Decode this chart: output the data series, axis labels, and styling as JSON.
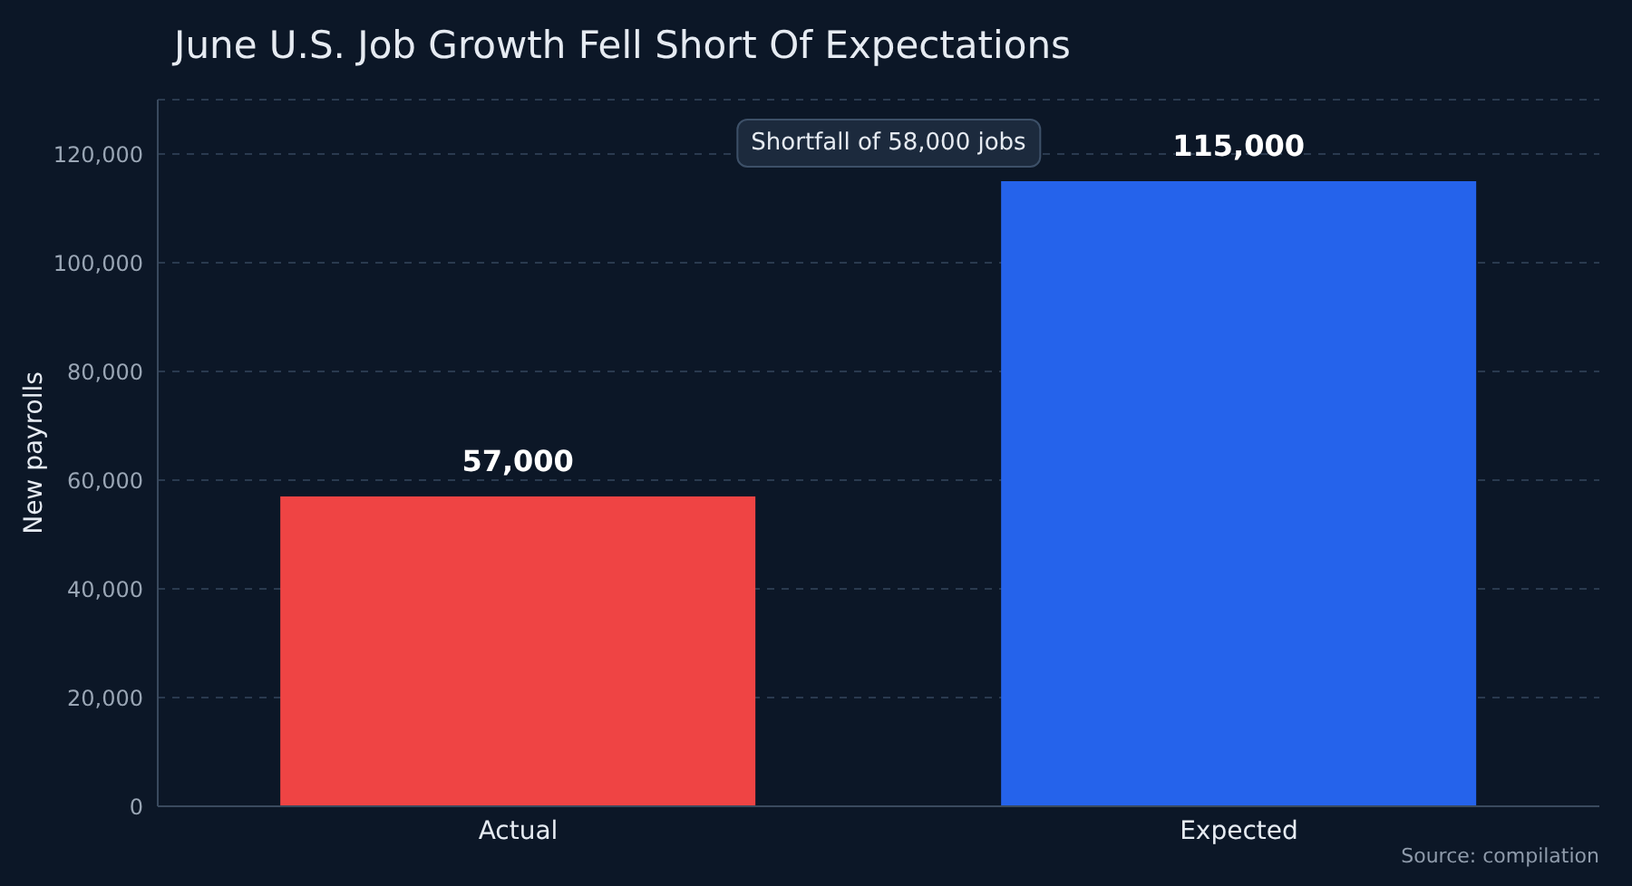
{
  "chart_data": {
    "type": "bar",
    "title": "June U.S. Job Growth Fell Short Of Expectations",
    "ylabel": "New payrolls",
    "categories": [
      "Actual",
      "Expected"
    ],
    "values": [
      57000,
      115000
    ],
    "colors": [
      "#ef4444",
      "#2563eb"
    ],
    "value_labels": [
      "57,000",
      "115,000"
    ],
    "ylim": [
      0,
      130000
    ],
    "yticks": [
      {
        "value": 0,
        "label": "0"
      },
      {
        "value": 20000,
        "label": "20,000"
      },
      {
        "value": 40000,
        "label": "40,000"
      },
      {
        "value": 60000,
        "label": "60,000"
      },
      {
        "value": 80000,
        "label": "80,000"
      },
      {
        "value": 100000,
        "label": "100,000"
      },
      {
        "value": 120000,
        "label": "120,000"
      }
    ],
    "grid": "y",
    "legend": false,
    "annotations": [
      "Shortfall of 58,000 jobs",
      "Source: compilation"
    ]
  }
}
